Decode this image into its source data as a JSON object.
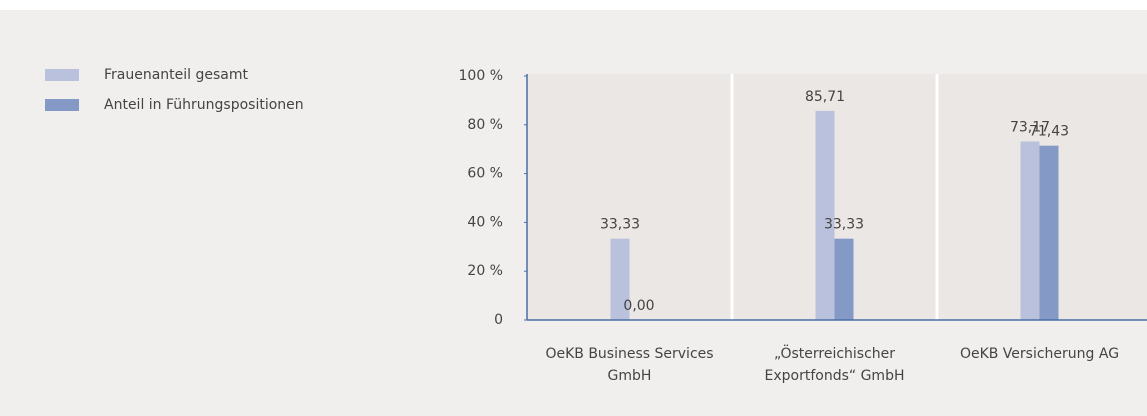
{
  "chart_data": {
    "type": "bar",
    "categories": [
      "OeKB Business Services GmbH",
      "„Österreichischer Exportfonds“ GmbH",
      "OeKB Versicherung AG"
    ],
    "series": [
      {
        "name": "Frauenanteil gesamt",
        "color": "#b9c1dc",
        "values": [
          33.33,
          85.71,
          73.17
        ],
        "value_labels": [
          "33,33",
          "85,71",
          "73,17"
        ]
      },
      {
        "name": "Anteil in Führungspositionen",
        "color": "#8499c5",
        "values": [
          0,
          33.33,
          71.43
        ],
        "value_labels": [
          "0,00",
          "33,33",
          "71,43"
        ]
      }
    ],
    "ylim": [
      0,
      100
    ],
    "yticks": [
      0,
      {
        "value": 20,
        "label": "20 %"
      },
      {
        "value": 40,
        "label": "40 %"
      },
      {
        "value": 60,
        "label": "60 %"
      },
      {
        "value": 80,
        "label": "80 %"
      },
      {
        "value": 100,
        "label": "100 %"
      }
    ],
    "legend": "top-left"
  }
}
